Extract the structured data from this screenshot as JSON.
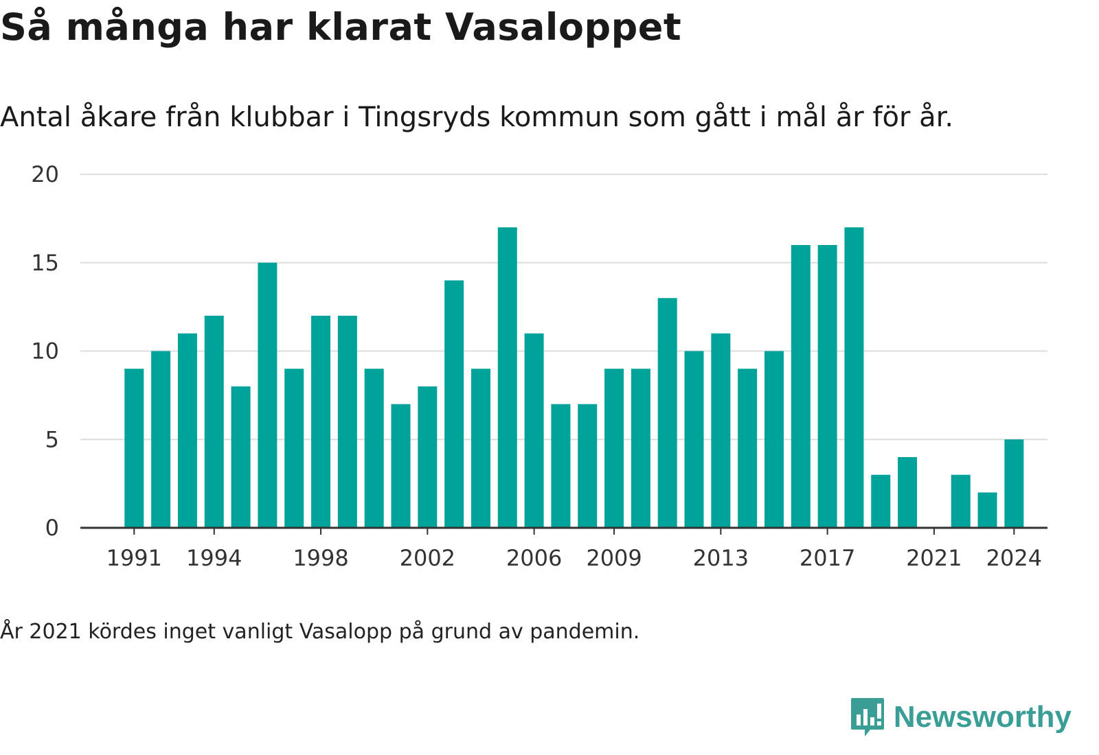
{
  "header": {
    "title": "Så många har klarat Vasaloppet",
    "subtitle": "Antal åkare från klubbar i Tingsryds kommun som gått i mål år för år."
  },
  "footnote": "År 2021 kördes inget vanligt Vasalopp på grund av pandemin.",
  "logo": {
    "text": "Newsworthy",
    "color": "#3a9e96",
    "icon": "newsworthy-chart-bubble-icon"
  },
  "chart_data": {
    "type": "bar",
    "categories": [
      1991,
      1992,
      1993,
      1994,
      1995,
      1996,
      1997,
      1998,
      1999,
      2000,
      2001,
      2002,
      2003,
      2004,
      2005,
      2006,
      2007,
      2008,
      2009,
      2010,
      2011,
      2012,
      2013,
      2014,
      2015,
      2016,
      2017,
      2018,
      2019,
      2020,
      2021,
      2022,
      2023,
      2024
    ],
    "values": [
      9,
      10,
      11,
      12,
      8,
      15,
      9,
      12,
      12,
      9,
      7,
      8,
      14,
      9,
      17,
      11,
      7,
      7,
      9,
      9,
      13,
      10,
      11,
      9,
      10,
      16,
      16,
      17,
      3,
      4,
      0,
      3,
      2,
      5
    ],
    "x_tick_labels": [
      "1991",
      "1994",
      "1998",
      "2002",
      "2006",
      "2009",
      "2013",
      "2017",
      "2021",
      "2024"
    ],
    "y_tick_labels": [
      "0",
      "5",
      "10",
      "15",
      "20"
    ],
    "ylim": [
      0,
      20
    ],
    "grid": true,
    "bar_color": "#00a39a",
    "grid_color": "#dddddd",
    "axis_color": "#333333"
  }
}
